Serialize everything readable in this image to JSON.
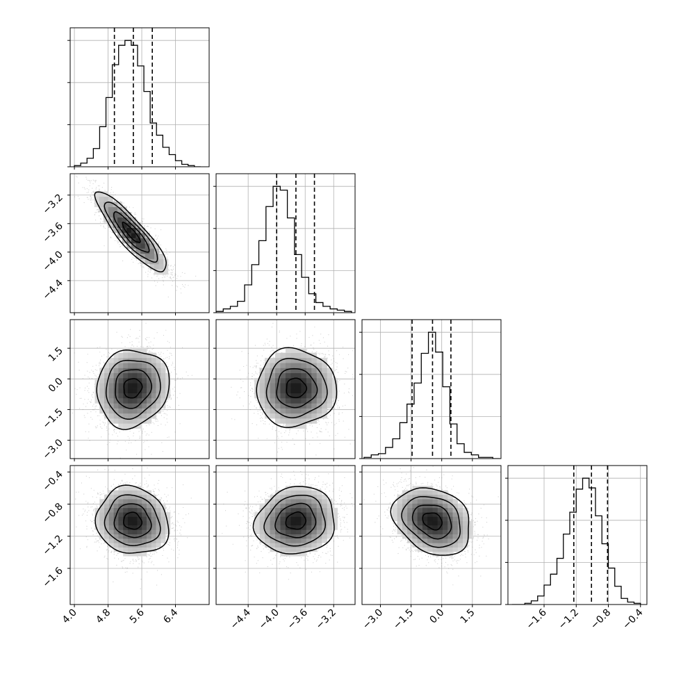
{
  "chart_data": {
    "type": "corner",
    "grid": true,
    "parameters": [
      {
        "range": [
          3.9,
          7.2
        ],
        "ticks": [
          4.0,
          4.8,
          5.6,
          6.4
        ],
        "tick_labels": [
          "4.0",
          "4.8",
          "5.6",
          "6.4"
        ],
        "quantiles": [
          4.95,
          5.4,
          5.85
        ]
      },
      {
        "range": [
          -4.85,
          -2.9
        ],
        "ticks": [
          -4.4,
          -4.0,
          -3.6,
          -3.2
        ],
        "tick_labels": [
          "−4.4",
          "−4.0",
          "−3.6",
          "−3.2"
        ],
        "quantiles": [
          -4.0,
          -3.73,
          -3.47
        ]
      },
      {
        "range": [
          -3.9,
          2.9
        ],
        "ticks": [
          -3.0,
          -1.5,
          0.0,
          1.5
        ],
        "tick_labels": [
          "−3.0",
          "−1.5",
          "0.0",
          "1.5"
        ],
        "quantiles": [
          -1.45,
          -0.45,
          0.45
        ]
      },
      {
        "range": [
          -2.05,
          -0.32
        ],
        "ticks": [
          -1.6,
          -1.2,
          -0.8,
          -0.4
        ],
        "tick_labels": [
          "−1.6",
          "−1.2",
          "−0.8",
          "−0.4"
        ],
        "quantiles": [
          -1.23,
          -1.01,
          -0.81
        ]
      }
    ],
    "marginals": [
      {
        "bin_edges": [
          4.0,
          4.15,
          4.3,
          4.45,
          4.6,
          4.75,
          4.9,
          5.05,
          5.2,
          5.35,
          5.5,
          5.65,
          5.8,
          5.95,
          6.1,
          6.25,
          6.4,
          6.55,
          6.7,
          6.85,
          7.0
        ],
        "counts": [
          0.01,
          0.03,
          0.07,
          0.15,
          0.33,
          0.57,
          0.84,
          1.0,
          1.04,
          1.0,
          0.83,
          0.62,
          0.36,
          0.26,
          0.16,
          0.1,
          0.05,
          0.02,
          0.01,
          0.0
        ]
      },
      {
        "bin_edges": [
          -4.85,
          -4.75,
          -4.65,
          -4.55,
          -4.45,
          -4.35,
          -4.25,
          -4.15,
          -4.05,
          -3.95,
          -3.85,
          -3.75,
          -3.65,
          -3.55,
          -3.45,
          -3.35,
          -3.25,
          -3.15,
          -3.05,
          -2.95
        ],
        "counts": [
          0.01,
          0.03,
          0.05,
          0.09,
          0.22,
          0.38,
          0.57,
          0.84,
          1.0,
          0.97,
          0.75,
          0.46,
          0.28,
          0.15,
          0.08,
          0.05,
          0.03,
          0.02,
          0.01
        ]
      },
      {
        "bin_edges": [
          -3.8,
          -3.45,
          -3.1,
          -2.75,
          -2.4,
          -2.05,
          -1.7,
          -1.35,
          -1.0,
          -0.65,
          -0.3,
          0.05,
          0.4,
          0.75,
          1.1,
          1.45,
          1.8,
          2.15,
          2.5,
          2.85
        ],
        "counts": [
          0.01,
          0.03,
          0.04,
          0.09,
          0.16,
          0.29,
          0.44,
          0.61,
          0.85,
          1.02,
          0.86,
          0.58,
          0.28,
          0.12,
          0.05,
          0.03,
          0.01,
          0.01,
          0.0
        ]
      },
      {
        "bin_edges": [
          -2.0,
          -1.92,
          -1.84,
          -1.76,
          -1.68,
          -1.6,
          -1.52,
          -1.44,
          -1.36,
          -1.28,
          -1.2,
          -1.12,
          -1.04,
          -0.96,
          -0.88,
          -0.8,
          -0.72,
          -0.64,
          -0.56,
          -0.48,
          -0.4
        ],
        "counts": [
          0.0,
          0.0,
          0.01,
          0.03,
          0.07,
          0.16,
          0.25,
          0.38,
          0.58,
          0.76,
          0.95,
          1.04,
          0.96,
          0.73,
          0.5,
          0.3,
          0.15,
          0.05,
          0.02,
          0.01
        ]
      }
    ],
    "pairs": [
      {
        "x_param": 0,
        "y_param": 1,
        "mean": [
          5.35,
          -3.73
        ],
        "sd": [
          0.42,
          0.28
        ],
        "corr": -0.88
      },
      {
        "x_param": 0,
        "y_param": 2,
        "mean": [
          5.38,
          -0.45
        ],
        "sd": [
          0.43,
          0.95
        ],
        "corr": 0.1
      },
      {
        "x_param": 1,
        "y_param": 2,
        "mean": [
          -3.73,
          -0.45
        ],
        "sd": [
          0.28,
          0.95
        ],
        "corr": 0.0
      },
      {
        "x_param": 0,
        "y_param": 3,
        "mean": [
          5.38,
          -1.01
        ],
        "sd": [
          0.43,
          0.21
        ],
        "corr": -0.1
      },
      {
        "x_param": 1,
        "y_param": 3,
        "mean": [
          -3.73,
          -1.01
        ],
        "sd": [
          0.28,
          0.21
        ],
        "corr": 0.1
      },
      {
        "x_param": 2,
        "y_param": 3,
        "mean": [
          -0.45,
          -1.01
        ],
        "sd": [
          0.95,
          0.21
        ],
        "corr": -0.25
      }
    ],
    "contour_levels": [
      0.5,
      1.0,
      1.5,
      2.0
    ],
    "quantile_style": "dashed"
  }
}
